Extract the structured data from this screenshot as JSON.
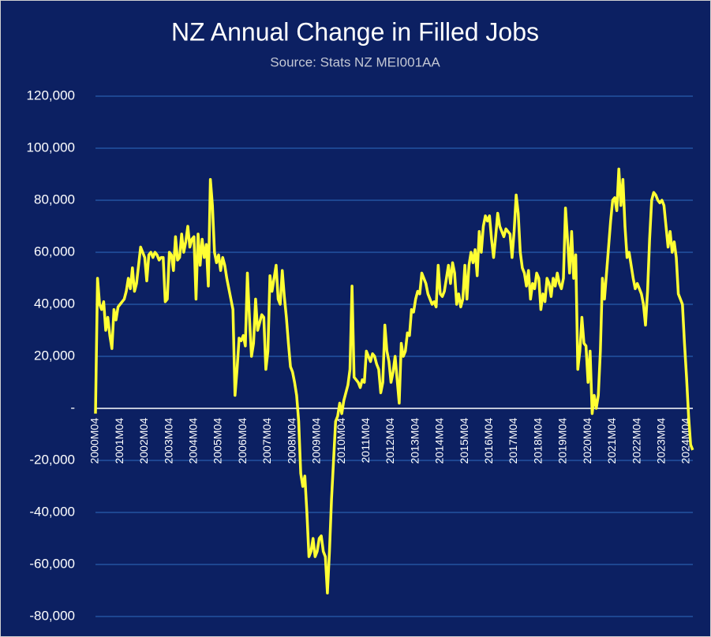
{
  "chart_data": {
    "type": "line",
    "title": "NZ Annual Change in Filled Jobs",
    "subtitle": "Source: Stats NZ MEI001AA",
    "categories": [
      "2000M04",
      null,
      null,
      null,
      null,
      null,
      null,
      null,
      null,
      null,
      null,
      null,
      "2001M04",
      null,
      null,
      null,
      null,
      null,
      null,
      null,
      null,
      null,
      null,
      null,
      "2002M04",
      null,
      null,
      null,
      null,
      null,
      null,
      null,
      null,
      null,
      null,
      null,
      "2003M04",
      null,
      null,
      null,
      null,
      null,
      null,
      null,
      null,
      null,
      null,
      null,
      "2004M04",
      null,
      null,
      null,
      null,
      null,
      null,
      null,
      null,
      null,
      null,
      null,
      "2005M04",
      null,
      null,
      null,
      null,
      null,
      null,
      null,
      null,
      null,
      null,
      null,
      "2006M04",
      null,
      null,
      null,
      null,
      null,
      null,
      null,
      null,
      null,
      null,
      null,
      "2007M04",
      null,
      null,
      null,
      null,
      null,
      null,
      null,
      null,
      null,
      null,
      null,
      "2008M04",
      null,
      null,
      null,
      null,
      null,
      null,
      null,
      null,
      null,
      null,
      null,
      "2009M04",
      null,
      null,
      null,
      null,
      null,
      null,
      null,
      null,
      null,
      null,
      null,
      "2010M04",
      null,
      null,
      null,
      null,
      null,
      null,
      null,
      null,
      null,
      null,
      null,
      "2011M04",
      null,
      null,
      null,
      null,
      null,
      null,
      null,
      null,
      null,
      null,
      null,
      "2012M04",
      null,
      null,
      null,
      null,
      null,
      null,
      null,
      null,
      null,
      null,
      null,
      "2013M04",
      null,
      null,
      null,
      null,
      null,
      null,
      null,
      null,
      null,
      null,
      null,
      "2014M04",
      null,
      null,
      null,
      null,
      null,
      null,
      null,
      null,
      null,
      null,
      null,
      "2015M04",
      null,
      null,
      null,
      null,
      null,
      null,
      null,
      null,
      null,
      null,
      null,
      "2016M04",
      null,
      null,
      null,
      null,
      null,
      null,
      null,
      null,
      null,
      null,
      null,
      "2017M04",
      null,
      null,
      null,
      null,
      null,
      null,
      null,
      null,
      null,
      null,
      null,
      "2018M04",
      null,
      null,
      null,
      null,
      null,
      null,
      null,
      null,
      null,
      null,
      null,
      "2019M04",
      null,
      null,
      null,
      null,
      null,
      null,
      null,
      null,
      null,
      null,
      null,
      "2020M04",
      null,
      null,
      null,
      null,
      null,
      null,
      null,
      null,
      null,
      null,
      null,
      "2021M04",
      null,
      null,
      null,
      null,
      null,
      null,
      null,
      null,
      null,
      null,
      null,
      "2022M04",
      null,
      null,
      null,
      null,
      null,
      null,
      null,
      null,
      null,
      null,
      null,
      "2023M04",
      null,
      null,
      null,
      null,
      null,
      null,
      null,
      null,
      null,
      null,
      null,
      "2024M04",
      null,
      null,
      null
    ],
    "series": [
      {
        "name": "Annual change in filled jobs",
        "color": "#ffff33",
        "values": [
          -2000,
          50000,
          40000,
          38000,
          41000,
          30000,
          35000,
          28000,
          23000,
          38000,
          34000,
          39000,
          40000,
          41000,
          42000,
          45000,
          50000,
          46000,
          54000,
          45000,
          48000,
          55000,
          62000,
          60000,
          58000,
          49000,
          59000,
          60000,
          58000,
          60000,
          59000,
          57000,
          58000,
          58000,
          41000,
          42000,
          60000,
          59000,
          53000,
          66000,
          57000,
          58000,
          67000,
          60000,
          64000,
          70000,
          62000,
          65000,
          66000,
          42000,
          67000,
          55000,
          65000,
          58000,
          63000,
          47000,
          88000,
          78000,
          60000,
          56000,
          59000,
          53000,
          58000,
          55000,
          50000,
          46000,
          42000,
          38000,
          5000,
          15000,
          27000,
          26000,
          28000,
          24000,
          52000,
          35000,
          20000,
          25000,
          42000,
          30000,
          33000,
          36000,
          35000,
          15000,
          22000,
          51000,
          45000,
          50000,
          55000,
          42000,
          40000,
          53000,
          43000,
          35000,
          25000,
          16000,
          14000,
          10000,
          5000,
          -5000,
          -25000,
          -30000,
          -26000,
          -40000,
          -57000,
          -55000,
          -50000,
          -57000,
          -55000,
          -50000,
          -49000,
          -55000,
          -57000,
          -71000,
          -55000,
          -35000,
          -20000,
          -5000,
          -3000,
          2000,
          -2000,
          3000,
          6000,
          9000,
          15000,
          47000,
          12000,
          11000,
          10000,
          8000,
          11000,
          10000,
          22000,
          20000,
          18000,
          21000,
          20000,
          17000,
          15000,
          6000,
          10000,
          32000,
          22000,
          18000,
          10000,
          14000,
          20000,
          11000,
          2000,
          25000,
          20000,
          22000,
          29000,
          28000,
          38000,
          37000,
          42000,
          45000,
          44000,
          52000,
          50000,
          48000,
          44000,
          42000,
          40000,
          41000,
          39000,
          55000,
          44000,
          43000,
          45000,
          50000,
          55000,
          48000,
          56000,
          52000,
          40000,
          44000,
          39000,
          42000,
          55000,
          42000,
          55000,
          60000,
          56000,
          61000,
          51000,
          68000,
          60000,
          70000,
          74000,
          72000,
          74000,
          65000,
          58000,
          66000,
          75000,
          70000,
          68000,
          66000,
          69000,
          68000,
          67000,
          58000,
          68000,
          82000,
          75000,
          60000,
          54000,
          52000,
          47000,
          53000,
          42000,
          48000,
          46000,
          52000,
          50000,
          38000,
          44000,
          41000,
          50000,
          48000,
          43000,
          50000,
          47000,
          52000,
          48000,
          46000,
          50000,
          77000,
          65000,
          52000,
          68000,
          50000,
          59000,
          15000,
          22000,
          35000,
          25000,
          24000,
          10000,
          22000,
          -2000,
          5000,
          0,
          5000,
          22000,
          50000,
          42000,
          52000,
          62000,
          72000,
          80000,
          81000,
          76000,
          92000,
          78000,
          88000,
          70000,
          58000,
          60000,
          55000,
          50000,
          46000,
          48000,
          46000,
          44000,
          40000,
          32000,
          45000,
          65000,
          80000,
          83000,
          82000,
          80000,
          79000,
          80000,
          78000,
          70000,
          62000,
          68000,
          60000,
          64000,
          58000,
          44000,
          42000,
          40000,
          25000,
          12000,
          -3000,
          -14000,
          -16000
        ]
      }
    ],
    "ylim": [
      -80000,
      120000
    ],
    "yticks": [
      {
        "value": -80000,
        "label": "-80,000"
      },
      {
        "value": -60000,
        "label": "-60,000"
      },
      {
        "value": -40000,
        "label": "-40,000"
      },
      {
        "value": -20000,
        "label": "-20,000"
      },
      {
        "value": 0,
        "label": "-"
      },
      {
        "value": 20000,
        "label": "20,000"
      },
      {
        "value": 40000,
        "label": "40,000"
      },
      {
        "value": 60000,
        "label": "60,000"
      },
      {
        "value": 80000,
        "label": "80,000"
      },
      {
        "value": 100000,
        "label": "100,000"
      },
      {
        "value": 120000,
        "label": "120,000"
      }
    ],
    "grid": true
  }
}
